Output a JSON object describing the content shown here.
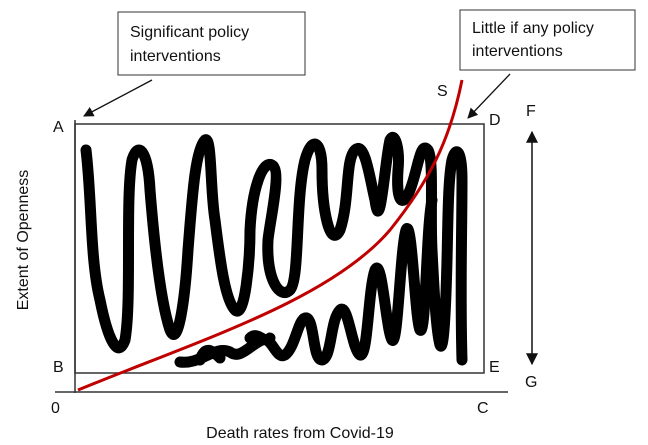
{
  "callouts": [
    {
      "lines": [
        "Significant policy",
        "interventions"
      ]
    },
    {
      "lines": [
        "Little if any policy",
        "interventions"
      ]
    }
  ],
  "points": {
    "a": "A",
    "b": "B",
    "c": "C",
    "d": "D",
    "e": "E",
    "f": "F",
    "g": "G",
    "s": "S",
    "origin": "0"
  },
  "axes": {
    "y_label": "Extent of Openness",
    "x_label": "Death rates from Covid-19"
  }
}
